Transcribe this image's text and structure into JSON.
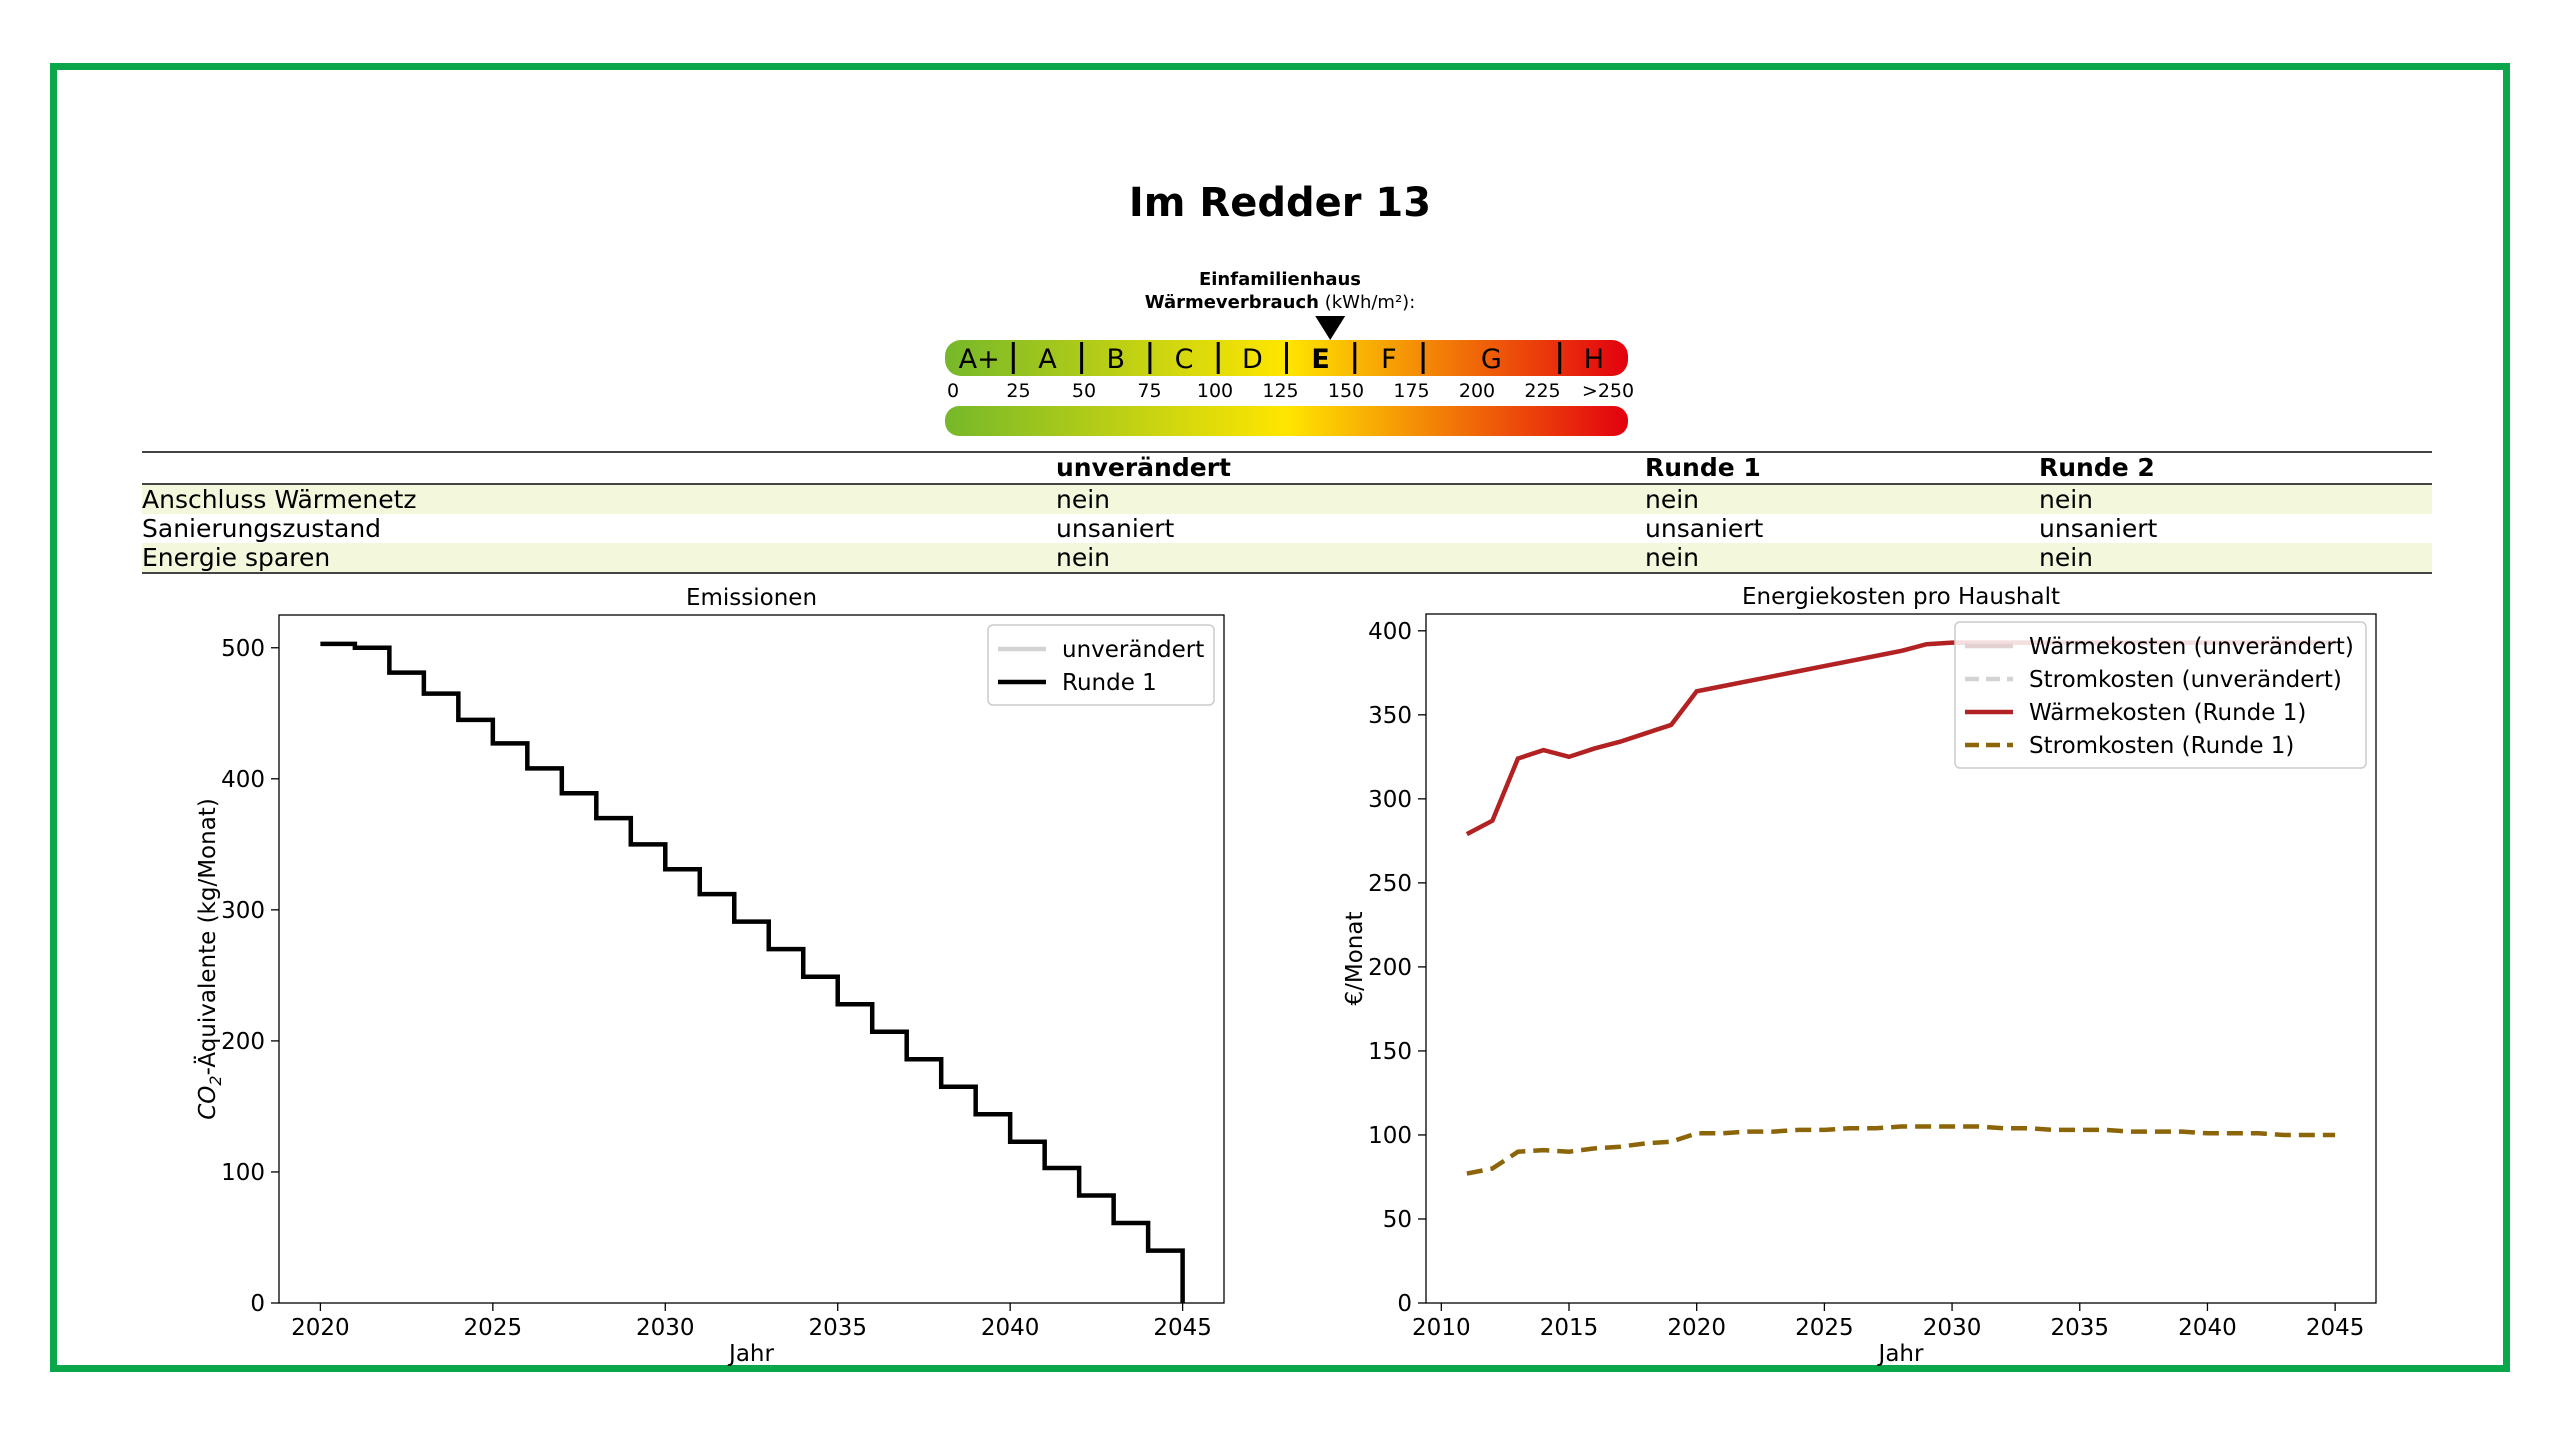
{
  "title": "Im Redder 13",
  "building_type": "Einfamilienhaus",
  "scale_label": "Wärmeverbrauch",
  "scale_unit": "(kWh/m²):",
  "energy_scale": {
    "classes": [
      {
        "label": "A+",
        "from": 0,
        "to": 25
      },
      {
        "label": "A",
        "from": 25,
        "to": 50
      },
      {
        "label": "B",
        "from": 50,
        "to": 75
      },
      {
        "label": "C",
        "from": 75,
        "to": 100
      },
      {
        "label": "D",
        "from": 100,
        "to": 125
      },
      {
        "label": "E",
        "from": 125,
        "to": 150
      },
      {
        "label": "F",
        "from": 150,
        "to": 175
      },
      {
        "label": "G",
        "from": 175,
        "to": 225
      },
      {
        "label": "H",
        "from": 225,
        "to": 250
      }
    ],
    "ticks": [
      "0",
      "25",
      "50",
      "75",
      "100",
      "125",
      "150",
      "175",
      "200",
      "225",
      ">250"
    ],
    "current_class": "E",
    "marker_value": 141,
    "colors": {
      "low": "#76b82a",
      "mid": "#ffe600",
      "high": "#e3000f"
    }
  },
  "table": {
    "headers": [
      "",
      "unverändert",
      "Runde 1",
      "Runde 2"
    ],
    "rows": [
      [
        "Anschluss Wärmenetz",
        "nein",
        "nein",
        "nein"
      ],
      [
        "Sanierungszustand",
        "unsaniert",
        "unsaniert",
        "unsaniert"
      ],
      [
        "Energie sparen",
        "nein",
        "nein",
        "nein"
      ]
    ],
    "shade_color": "#f3f7dc"
  },
  "chart_data": [
    {
      "type": "line",
      "title": "Emissionen",
      "xlabel": "Jahr",
      "ylabel_prefix": "CO",
      "ylabel_sub": "2",
      "ylabel_rest": "-Äquivalente (kg/Monat)",
      "xlim": [
        2018.8,
        2046.2
      ],
      "ylim": [
        0,
        525
      ],
      "xticks": [
        2020,
        2025,
        2030,
        2035,
        2040,
        2045
      ],
      "yticks": [
        0,
        100,
        200,
        300,
        400,
        500
      ],
      "legend_position": "top-right",
      "series": [
        {
          "name": "unverändert",
          "color": "#d3d3d3",
          "dash": "solid",
          "step": true,
          "x": [],
          "y": []
        },
        {
          "name": "Runde 1",
          "color": "#000000",
          "dash": "solid",
          "step": true,
          "x": [
            2020,
            2021,
            2022,
            2023,
            2024,
            2025,
            2026,
            2027,
            2028,
            2029,
            2030,
            2031,
            2032,
            2033,
            2034,
            2035,
            2036,
            2037,
            2038,
            2039,
            2040,
            2041,
            2042,
            2043,
            2044,
            2045
          ],
          "y": [
            503,
            500,
            481,
            465,
            445,
            427,
            408,
            389,
            370,
            350,
            331,
            312,
            291,
            270,
            249,
            228,
            207,
            186,
            165,
            144,
            123,
            103,
            82,
            61,
            40,
            19
          ]
        }
      ]
    },
    {
      "type": "line",
      "title": "Energiekosten pro Haushalt",
      "xlabel": "Jahr",
      "ylabel": "€/Monat",
      "xlim": [
        2009.4,
        2046.6
      ],
      "ylim": [
        0,
        410
      ],
      "xticks": [
        2010,
        2015,
        2020,
        2025,
        2030,
        2035,
        2040,
        2045
      ],
      "yticks": [
        0,
        50,
        100,
        150,
        200,
        250,
        300,
        350,
        400
      ],
      "legend_position": "top-right",
      "series": [
        {
          "name": "Wärmekosten (unverändert)",
          "color": "#e3d0d0",
          "dash": "solid",
          "x": [],
          "y": []
        },
        {
          "name": "Stromkosten (unverändert)",
          "color": "#d3d3d3",
          "dash": "dashed",
          "x": [],
          "y": []
        },
        {
          "name": "Wärmekosten (Runde 1)",
          "color": "#b22222",
          "dash": "solid",
          "x": [
            2011,
            2012,
            2013,
            2014,
            2015,
            2016,
            2017,
            2018,
            2019,
            2020,
            2021,
            2022,
            2023,
            2024,
            2025,
            2026,
            2027,
            2028,
            2029,
            2030,
            2031,
            2032,
            2033,
            2034,
            2035,
            2036,
            2037,
            2038,
            2039,
            2040,
            2041,
            2042,
            2043,
            2044,
            2045
          ],
          "y": [
            279,
            287,
            324,
            329,
            325,
            330,
            334,
            339,
            344,
            364,
            367,
            370,
            373,
            376,
            379,
            382,
            385,
            388,
            392,
            393,
            393,
            393,
            393,
            393,
            393,
            393,
            393,
            393,
            393,
            393,
            393,
            393,
            393,
            393,
            393
          ]
        },
        {
          "name": "Stromkosten (Runde 1)",
          "color": "#8b6508",
          "dash": "dashed",
          "x": [
            2011,
            2012,
            2013,
            2014,
            2015,
            2016,
            2017,
            2018,
            2019,
            2020,
            2021,
            2022,
            2023,
            2024,
            2025,
            2026,
            2027,
            2028,
            2029,
            2030,
            2031,
            2032,
            2033,
            2034,
            2035,
            2036,
            2037,
            2038,
            2039,
            2040,
            2041,
            2042,
            2043,
            2044,
            2045
          ],
          "y": [
            77,
            80,
            90,
            91,
            90,
            92,
            93,
            95,
            96,
            101,
            101,
            102,
            102,
            103,
            103,
            104,
            104,
            105,
            105,
            105,
            105,
            104,
            104,
            103,
            103,
            103,
            102,
            102,
            102,
            101,
            101,
            101,
            100,
            100,
            100
          ]
        }
      ]
    }
  ]
}
